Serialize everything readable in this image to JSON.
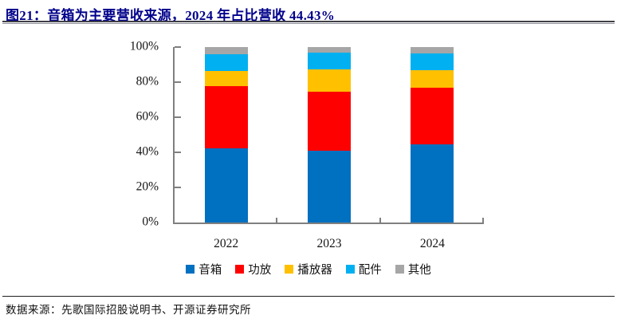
{
  "header": {
    "title": "图21：音箱为主要营收来源，2024 年占比营收 44.43%"
  },
  "chart_data": {
    "type": "bar",
    "stacked": true,
    "title": "音箱为主要营收来源，2024 年占比营收 44.43%",
    "categories": [
      "2022",
      "2023",
      "2024"
    ],
    "series": [
      {
        "name": "音箱",
        "color": "#0070C0",
        "values": [
          42.4,
          41.1,
          44.43
        ]
      },
      {
        "name": "功放",
        "color": "#FF0000",
        "values": [
          35.4,
          33.5,
          32.57
        ]
      },
      {
        "name": "播放器",
        "color": "#FFC000",
        "values": [
          8.7,
          12.7,
          9.9
        ]
      },
      {
        "name": "配件",
        "color": "#00B0F0",
        "values": [
          9.3,
          9.4,
          9.5
        ]
      },
      {
        "name": "其他",
        "color": "#A6A6A6",
        "values": [
          4.2,
          3.3,
          3.6
        ]
      }
    ],
    "xlabel": "",
    "ylabel": "",
    "y_ticks": [
      "0%",
      "20%",
      "40%",
      "60%",
      "80%",
      "100%"
    ],
    "ylim": [
      0,
      100
    ],
    "grid": false,
    "legend_position": "bottom"
  },
  "footer": {
    "source": "数据来源：先歌国际招股说明书、开源证券研究所"
  },
  "colors": {
    "title": "#00008B",
    "axis": "#7F7F7F",
    "text": "#141414"
  }
}
